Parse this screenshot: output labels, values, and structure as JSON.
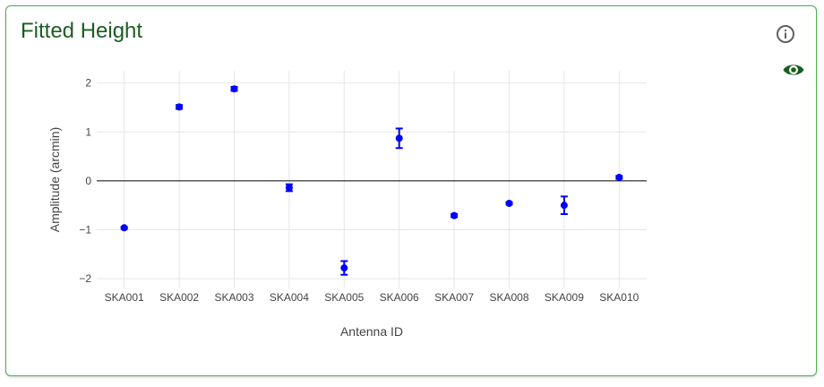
{
  "panel": {
    "title": "Fitted Height",
    "info_icon": "info-circle-icon",
    "visibility_icon": "eye-icon"
  },
  "colors": {
    "title": "#1b5e20",
    "border": "#4caf50",
    "marker": "#0000ff",
    "grid": "#e6e6e6",
    "zeroline": "#000000",
    "icon_info": "#616161",
    "icon_eye": "#1b5e20"
  },
  "chart_data": {
    "type": "scatter",
    "xlabel": "Antenna ID",
    "ylabel": "Amplitude (arcmin)",
    "categories": [
      "SKA001",
      "SKA002",
      "SKA003",
      "SKA004",
      "SKA005",
      "SKA006",
      "SKA007",
      "SKA008",
      "SKA009",
      "SKA010"
    ],
    "values": [
      -0.96,
      1.51,
      1.88,
      -0.14,
      -1.78,
      0.87,
      -0.71,
      -0.46,
      -0.5,
      0.07
    ],
    "errors": [
      0.02,
      0.04,
      0.04,
      0.07,
      0.14,
      0.2,
      0.03,
      0.02,
      0.18,
      0.03
    ],
    "ylim": [
      -2.2,
      2.25
    ],
    "yticks": [
      2,
      1,
      0,
      -1,
      -2
    ],
    "ytick_labels": [
      "2",
      "1",
      "0",
      "−1",
      "−2"
    ],
    "grid": true,
    "zeroline": true,
    "legend": "none"
  }
}
